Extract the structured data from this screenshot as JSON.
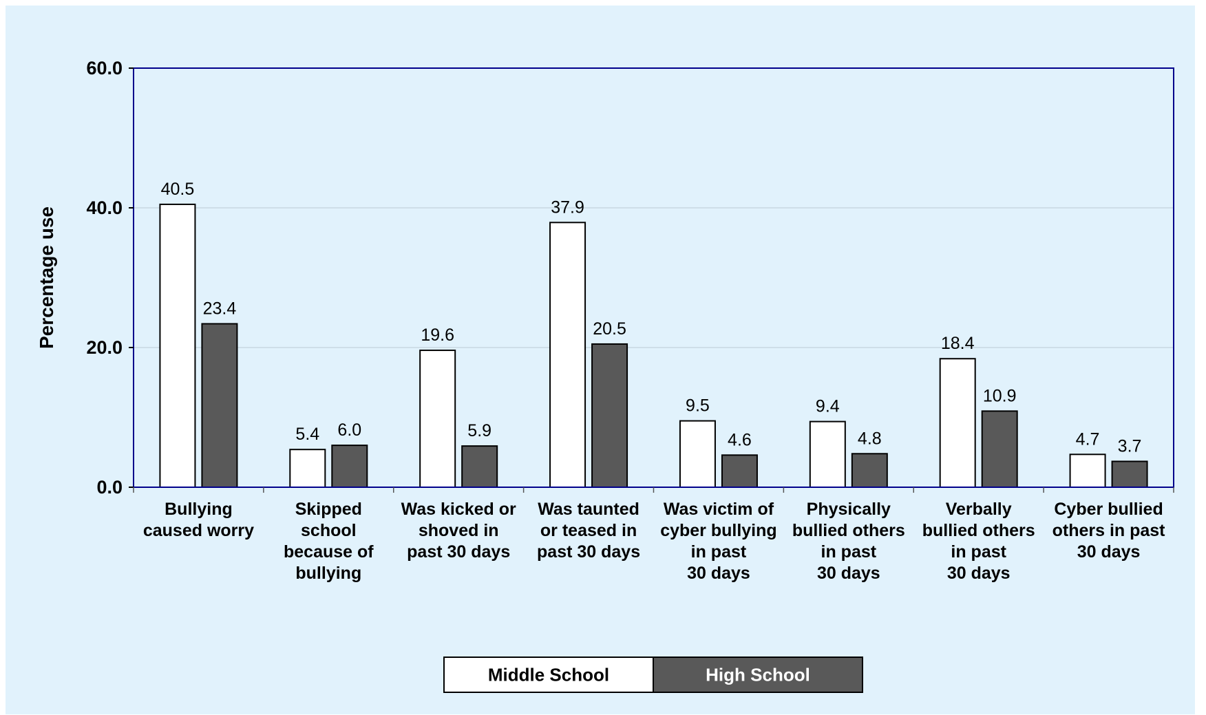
{
  "colors": {
    "background": "#e1f2fc",
    "plot_border": "#00008b",
    "middle_school": "#ffffff",
    "high_school": "#595959",
    "gridline": "#c8d8e2"
  },
  "chart_data": {
    "type": "bar",
    "title": "",
    "xlabel": "",
    "ylabel": "Percentage use",
    "ylim": [
      0,
      60
    ],
    "yticks": [
      "0.0",
      "20.0",
      "40.0",
      "60.0"
    ],
    "grid": true,
    "legend_position": "bottom",
    "categories": [
      [
        "Bullying",
        "caused worry"
      ],
      [
        "Skipped",
        "school",
        "because of",
        "bullying"
      ],
      [
        "Was kicked or",
        "shoved in",
        "past 30 days"
      ],
      [
        "Was taunted",
        "or teased in",
        "past 30 days"
      ],
      [
        "Was victim of",
        "cyber bullying",
        "in past",
        "30 days"
      ],
      [
        "Physically",
        "bullied others",
        "in past",
        "30 days"
      ],
      [
        "Verbally",
        "bullied others",
        "in past",
        "30 days"
      ],
      [
        "Cyber bullied",
        "others in past",
        "30 days"
      ]
    ],
    "series": [
      {
        "name": "Middle School",
        "values": [
          40.5,
          5.4,
          19.6,
          37.9,
          9.5,
          9.4,
          18.4,
          4.7
        ],
        "labels": [
          "40.5",
          "5.4",
          "19.6",
          "37.9",
          "9.5",
          "9.4",
          "18.4",
          "4.7"
        ]
      },
      {
        "name": "High School",
        "values": [
          23.4,
          6.0,
          5.9,
          20.5,
          4.6,
          4.8,
          10.9,
          3.7
        ],
        "labels": [
          "23.4",
          "6.0",
          "5.9",
          "20.5",
          "4.6",
          "4.8",
          "10.9",
          "3.7"
        ]
      }
    ]
  }
}
